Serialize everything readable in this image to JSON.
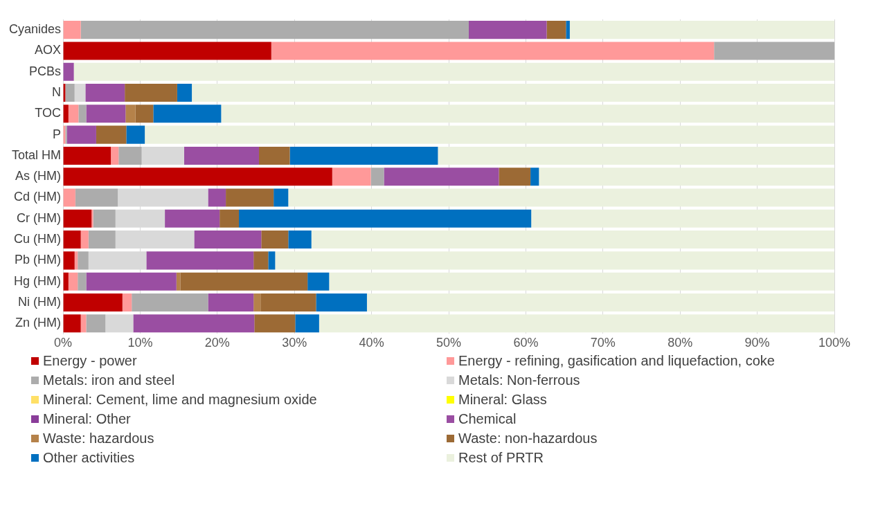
{
  "chart_data": {
    "type": "bar",
    "orientation": "horizontal",
    "stacked": true,
    "grid": "x",
    "legend": "bottom",
    "categories": [
      "Cyanides",
      "AOX",
      "PCBs",
      "N",
      "TOC",
      "P",
      "Total HM",
      "As (HM)",
      "Cd (HM)",
      "Cr (HM)",
      "Cu (HM)",
      "Pb (HM)",
      "Hg (HM)",
      "Ni (HM)",
      "Zn (HM)"
    ],
    "xlim": [
      0,
      100
    ],
    "xticks": [
      {
        "value": 0,
        "label": "0%"
      },
      {
        "value": 10,
        "label": "10%"
      },
      {
        "value": 20,
        "label": "20%"
      },
      {
        "value": 30,
        "label": "30%"
      },
      {
        "value": 40,
        "label": "40%"
      },
      {
        "value": 50,
        "label": "50%"
      },
      {
        "value": 60,
        "label": "60%"
      },
      {
        "value": 70,
        "label": "70%"
      },
      {
        "value": 80,
        "label": "80%"
      },
      {
        "value": 90,
        "label": "90%"
      },
      {
        "value": 100,
        "label": "100%"
      }
    ],
    "series": [
      {
        "name": "Energy - power",
        "color": "#c00000",
        "values": [
          0,
          27.0,
          0,
          0.3,
          0.7,
          0,
          6.2,
          34.9,
          0,
          3.7,
          2.3,
          1.5,
          0.7,
          7.7,
          2.3
        ]
      },
      {
        "name": "Energy - refining, gasification and liquefaction, coke",
        "color": "#ff9999",
        "values": [
          2.3,
          57.4,
          0,
          0,
          1.3,
          0.3,
          1.0,
          5.0,
          1.6,
          0.2,
          1.0,
          0.4,
          1.2,
          1.2,
          0.7
        ]
      },
      {
        "name": "Metals: iron and steel",
        "color": "#acacac",
        "values": [
          50.3,
          15.6,
          0,
          1.2,
          1.0,
          0.2,
          3.0,
          1.7,
          5.5,
          2.9,
          3.5,
          1.4,
          1.1,
          9.9,
          2.5
        ]
      },
      {
        "name": "Metals: Non-ferrous",
        "color": "#d9d9d9",
        "values": [
          0,
          0,
          0,
          1.4,
          0,
          0,
          5.5,
          0,
          11.7,
          6.4,
          10.2,
          7.5,
          0,
          0,
          3.6
        ]
      },
      {
        "name": "Mineral: Cement, lime and magnesium oxide",
        "color": "#ffe066",
        "values": [
          0,
          0,
          0,
          0,
          0,
          0,
          0,
          0,
          0,
          0,
          0,
          0,
          0,
          0,
          0
        ]
      },
      {
        "name": "Mineral: Glass",
        "color": "#ffff00",
        "values": [
          0,
          0,
          0,
          0,
          0,
          0,
          0,
          0,
          0,
          0,
          0,
          0,
          0,
          0,
          0
        ]
      },
      {
        "name": "Mineral: Other",
        "color": "#8a3d99",
        "values": [
          0,
          0,
          0,
          0,
          0,
          0,
          0,
          0,
          0,
          0,
          0,
          0,
          0,
          0,
          0
        ]
      },
      {
        "name": "Chemical",
        "color": "#9a4ea2",
        "values": [
          10.1,
          0,
          1.4,
          5.1,
          5.1,
          3.8,
          9.7,
          14.9,
          2.3,
          7.1,
          8.7,
          13.9,
          11.7,
          5.9,
          15.7
        ]
      },
      {
        "name": "Waste: hazardous",
        "color": "#b5824a",
        "values": [
          0,
          0,
          0,
          0,
          1.3,
          0,
          0,
          0,
          0,
          0,
          0,
          0,
          0.5,
          0.9,
          0
        ]
      },
      {
        "name": "Waste: non-hazardous",
        "color": "#9c6a35",
        "values": [
          2.5,
          0,
          0,
          6.8,
          2.3,
          3.9,
          4.0,
          4.1,
          6.2,
          2.5,
          3.5,
          1.9,
          16.5,
          7.2,
          5.3
        ]
      },
      {
        "name": "Other activities",
        "color": "#0070c0",
        "values": [
          0.5,
          0,
          0,
          1.9,
          8.8,
          2.4,
          19.2,
          1.1,
          1.9,
          37.9,
          3.0,
          0.9,
          2.8,
          6.6,
          3.1
        ]
      },
      {
        "name": "Rest of PRTR",
        "color": "#ebf1de",
        "values": [
          34.3,
          0,
          98.6,
          83.3,
          79.5,
          89.4,
          51.4,
          38.3,
          70.8,
          39.3,
          67.8,
          72.5,
          65.5,
          60.6,
          66.8
        ]
      }
    ]
  }
}
